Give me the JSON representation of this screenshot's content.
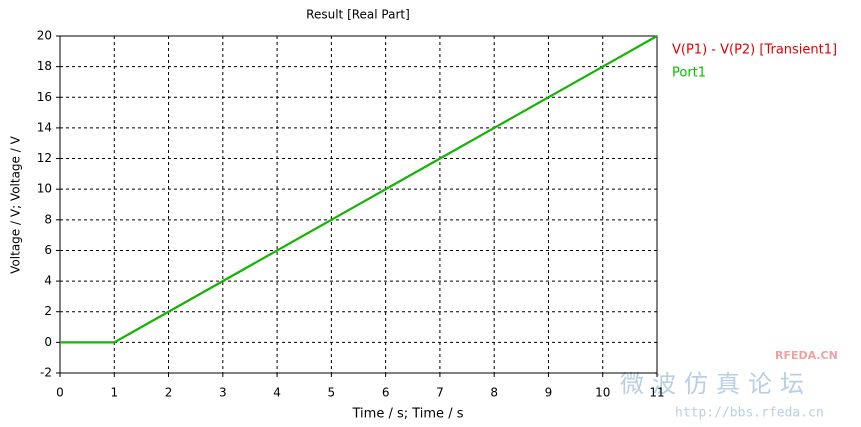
{
  "chart_data": {
    "type": "line",
    "title": "Result [Real Part]",
    "x_label": "Time / s; Time / s",
    "y_label": "Voltage / V; Voltage / V",
    "x": [
      0,
      1,
      11
    ],
    "series": [
      {
        "name": "V(P1) - V(P2) [Transient1]",
        "color": "#e00000",
        "values": [
          0,
          0,
          20
        ]
      },
      {
        "name": "Port1",
        "color": "#00c000",
        "values": [
          0,
          0,
          20
        ]
      }
    ],
    "xlim": [
      0,
      11
    ],
    "xticks": [
      0,
      1,
      2,
      3,
      4,
      5,
      6,
      7,
      8,
      9,
      10,
      11
    ],
    "ylim": [
      -2,
      20
    ],
    "yticks": [
      -2,
      0,
      2,
      4,
      6,
      8,
      10,
      12,
      14,
      16,
      18,
      20
    ],
    "grid": true,
    "legend": "right",
    "watermarks": [
      "RFEDA.CN",
      "微波仿真论坛",
      "http://bbs.rfeda.cn"
    ]
  }
}
